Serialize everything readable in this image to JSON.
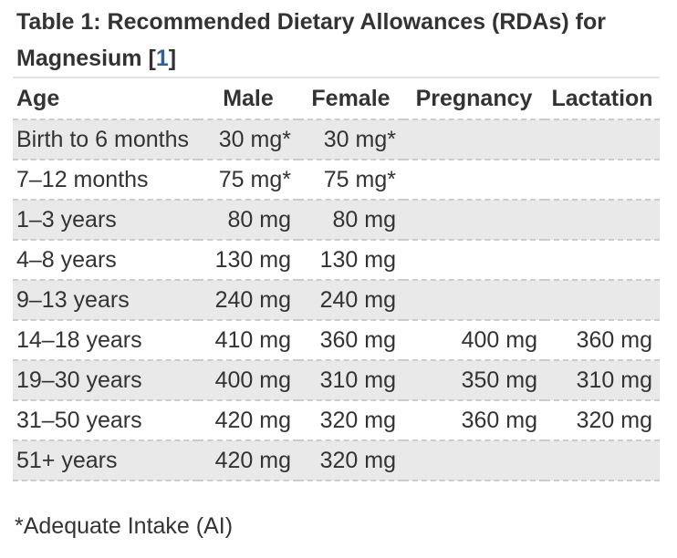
{
  "title": {
    "text": "Table 1: Recommended Dietary Allowances (RDAs) for Magnesium",
    "ref_open": " [",
    "ref_label": "1",
    "ref_close": "]"
  },
  "table": {
    "columns": [
      "Age",
      "Male",
      "Female",
      "Pregnancy",
      "Lactation"
    ],
    "rows": [
      {
        "age": "Birth to 6 months",
        "male": "30 mg*",
        "female": "30 mg*",
        "pregnancy": "",
        "lactation": ""
      },
      {
        "age": "7–12 months",
        "male": "75 mg*",
        "female": "75 mg*",
        "pregnancy": "",
        "lactation": ""
      },
      {
        "age": "1–3 years",
        "male": "80 mg",
        "female": "80 mg",
        "pregnancy": "",
        "lactation": ""
      },
      {
        "age": "4–8 years",
        "male": "130 mg",
        "female": "130 mg",
        "pregnancy": "",
        "lactation": ""
      },
      {
        "age": "9–13 years",
        "male": "240 mg",
        "female": "240 mg",
        "pregnancy": "",
        "lactation": ""
      },
      {
        "age": "14–18 years",
        "male": "410 mg",
        "female": "360 mg",
        "pregnancy": "400 mg",
        "lactation": "360 mg"
      },
      {
        "age": "19–30 years",
        "male": "400 mg",
        "female": "310 mg",
        "pregnancy": "350 mg",
        "lactation": "310 mg"
      },
      {
        "age": "31–50 years",
        "male": "420 mg",
        "female": "320 mg",
        "pregnancy": "360 mg",
        "lactation": "320 mg"
      },
      {
        "age": "51+ years",
        "male": "420 mg",
        "female": "320 mg",
        "pregnancy": "",
        "lactation": ""
      }
    ]
  },
  "footnote": "*Adequate Intake (AI)",
  "colors": {
    "text": "#333333",
    "link_blue": "#2a6496",
    "stripe_gray": "#e9e9e9",
    "dashed_border": "#cccccc",
    "top_border": "#e3e3e3"
  }
}
